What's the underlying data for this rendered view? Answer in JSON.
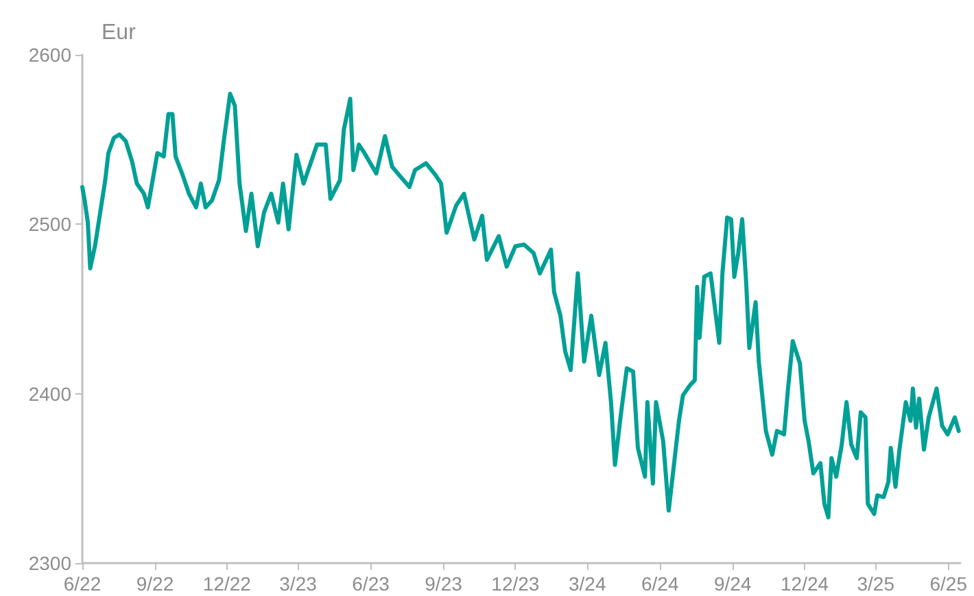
{
  "chart_data": {
    "type": "line",
    "ylabel": "Eur",
    "xlim": [
      "2022-06-01",
      "2025-06-16"
    ],
    "xticks": [
      {
        "value": "2022-06-01",
        "label": "6/22"
      },
      {
        "value": "2022-09-01",
        "label": "9/22"
      },
      {
        "value": "2022-12-01",
        "label": "12/22"
      },
      {
        "value": "2023-03-01",
        "label": "3/23"
      },
      {
        "value": "2023-06-01",
        "label": "6/23"
      },
      {
        "value": "2023-09-01",
        "label": "9/23"
      },
      {
        "value": "2023-12-01",
        "label": "12/23"
      },
      {
        "value": "2024-03-01",
        "label": "3/24"
      },
      {
        "value": "2024-06-01",
        "label": "6/24"
      },
      {
        "value": "2024-09-01",
        "label": "9/24"
      },
      {
        "value": "2024-12-01",
        "label": "12/24"
      },
      {
        "value": "2025-03-01",
        "label": "3/25"
      },
      {
        "value": "2025-06-01",
        "label": "6/25"
      }
    ],
    "ylim": [
      2300,
      2600
    ],
    "yticks": [
      2300,
      2400,
      2500,
      2600
    ],
    "grid": false,
    "marker": "none",
    "line_style": "solid",
    "series": [
      {
        "color": "#00a096",
        "x": [
          "2022-06-01",
          "2022-06-04",
          "2022-06-08",
          "2022-06-11",
          "2022-06-17",
          "2022-06-21",
          "2022-06-30",
          "2022-07-04",
          "2022-07-11",
          "2022-07-18",
          "2022-07-26",
          "2022-08-03",
          "2022-08-09",
          "2022-08-18",
          "2022-08-23",
          "2022-08-29",
          "2022-09-04",
          "2022-09-12",
          "2022-09-18",
          "2022-09-23",
          "2022-09-27",
          "2022-10-06",
          "2022-10-14",
          "2022-10-23",
          "2022-10-29",
          "2022-11-04",
          "2022-11-12",
          "2022-11-21",
          "2022-11-27",
          "2022-12-05",
          "2022-12-11",
          "2022-12-17",
          "2022-12-25",
          "2023-01-01",
          "2023-01-09",
          "2023-01-17",
          "2023-01-26",
          "2023-02-04",
          "2023-02-10",
          "2023-02-17",
          "2023-02-27",
          "2023-03-08",
          "2023-03-25",
          "2023-04-05",
          "2023-04-11",
          "2023-04-23",
          "2023-04-28",
          "2023-05-06",
          "2023-05-10",
          "2023-05-17",
          "2023-05-24",
          "2023-06-08",
          "2023-06-19",
          "2023-06-28",
          "2023-07-07",
          "2023-07-20",
          "2023-07-27",
          "2023-08-10",
          "2023-08-22",
          "2023-08-29",
          "2023-09-05",
          "2023-09-17",
          "2023-09-27",
          "2023-10-10",
          "2023-10-20",
          "2023-10-26",
          "2023-11-10",
          "2023-11-20",
          "2023-12-01",
          "2023-12-12",
          "2023-12-24",
          "2024-01-01",
          "2024-01-15",
          "2024-01-19",
          "2024-01-27",
          "2024-02-02",
          "2024-02-09",
          "2024-02-18",
          "2024-02-26",
          "2024-03-06",
          "2024-03-16",
          "2024-03-24",
          "2024-03-31",
          "2024-04-05",
          "2024-04-12",
          "2024-04-20",
          "2024-04-28",
          "2024-05-04",
          "2024-05-13",
          "2024-05-16",
          "2024-05-23",
          "2024-05-27",
          "2024-06-05",
          "2024-06-12",
          "2024-06-25",
          "2024-06-30",
          "2024-07-09",
          "2024-07-15",
          "2024-07-18",
          "2024-07-21",
          "2024-07-27",
          "2024-08-04",
          "2024-08-15",
          "2024-08-19",
          "2024-08-25",
          "2024-08-30",
          "2024-09-03",
          "2024-09-08",
          "2024-09-13",
          "2024-09-18",
          "2024-09-22",
          "2024-09-30",
          "2024-10-04",
          "2024-10-13",
          "2024-10-21",
          "2024-10-27",
          "2024-11-05",
          "2024-11-10",
          "2024-11-16",
          "2024-11-25",
          "2024-12-01",
          "2024-12-06",
          "2024-12-12",
          "2024-12-21",
          "2024-12-26",
          "2024-12-31",
          "2025-01-04",
          "2025-01-10",
          "2025-01-17",
          "2025-01-23",
          "2025-01-29",
          "2025-02-05",
          "2025-02-10",
          "2025-02-16",
          "2025-02-19",
          "2025-02-27",
          "2025-03-03",
          "2025-03-11",
          "2025-03-17",
          "2025-03-20",
          "2025-03-26",
          "2025-03-31",
          "2025-04-08",
          "2025-04-14",
          "2025-04-17",
          "2025-04-21",
          "2025-04-25",
          "2025-05-01",
          "2025-05-07",
          "2025-05-17",
          "2025-05-24",
          "2025-05-31",
          "2025-06-09",
          "2025-06-14"
        ],
        "values": [
          2522,
          2514,
          2501,
          2474,
          2487,
          2499,
          2526,
          2542,
          2551,
          2553,
          2549,
          2537,
          2524,
          2518,
          2510,
          2526,
          2542,
          2540,
          2565,
          2565,
          2540,
          2529,
          2518,
          2510,
          2524,
          2510,
          2514,
          2526,
          2549,
          2577,
          2570,
          2524,
          2496,
          2518,
          2487,
          2507,
          2518,
          2501,
          2524,
          2497,
          2541,
          2524,
          2547,
          2547,
          2515,
          2526,
          2556,
          2574,
          2532,
          2547,
          2542,
          2530,
          2552,
          2534,
          2529,
          2522,
          2532,
          2536,
          2529,
          2524,
          2495,
          2511,
          2518,
          2491,
          2505,
          2479,
          2493,
          2475,
          2487,
          2488,
          2483,
          2471,
          2485,
          2460,
          2446,
          2425,
          2414,
          2471,
          2419,
          2446,
          2411,
          2430,
          2395,
          2358,
          2386,
          2415,
          2413,
          2368,
          2351,
          2395,
          2347,
          2395,
          2372,
          2331,
          2384,
          2399,
          2405,
          2408,
          2463,
          2433,
          2469,
          2471,
          2430,
          2471,
          2504,
          2503,
          2469,
          2483,
          2503,
          2466,
          2427,
          2454,
          2419,
          2378,
          2364,
          2378,
          2376,
          2403,
          2431,
          2418,
          2384,
          2372,
          2353,
          2359,
          2335,
          2327,
          2362,
          2351,
          2370,
          2395,
          2370,
          2362,
          2389,
          2386,
          2335,
          2329,
          2340,
          2339,
          2348,
          2368,
          2345,
          2367,
          2395,
          2384,
          2403,
          2380,
          2397,
          2367,
          2386,
          2403,
          2381,
          2376,
          2386,
          2378
        ]
      }
    ]
  }
}
